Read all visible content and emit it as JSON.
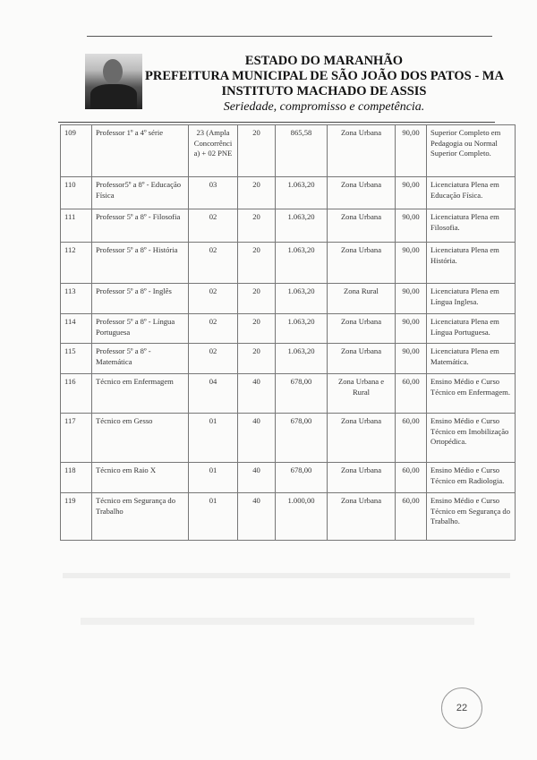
{
  "header": {
    "line1": "ESTADO DO MARANHÃO",
    "line2": "PREFEITURA MUNICIPAL DE SÃO JOÃO DOS PATOS - MA",
    "line3": "INSTITUTO MACHADO DE ASSIS",
    "motto": "Seriedade, compromisso e competência."
  },
  "table": {
    "rows": [
      {
        "code": "109",
        "cargo": "Professor 1º a 4º série",
        "vagas": "23 (Ampla Concorrência) + 02 PNE",
        "carga": "20",
        "salario": "865,58",
        "zona": "Zona Urbana",
        "taxa": "90,00",
        "requisito": "Superior Completo em Pedagogia ou Normal Superior Completo."
      },
      {
        "code": "110",
        "cargo": "Professor5º a 8º - Educação Física",
        "vagas": "03",
        "carga": "20",
        "salario": "1.063,20",
        "zona": "Zona Urbana",
        "taxa": "90,00",
        "requisito": "Licenciatura Plena em Educação Física."
      },
      {
        "code": "111",
        "cargo": "Professor 5º a 8º - Filosofia",
        "vagas": "02",
        "carga": "20",
        "salario": "1.063,20",
        "zona": "Zona Urbana",
        "taxa": "90,00",
        "requisito": "Licenciatura Plena em Filosofia."
      },
      {
        "code": "112",
        "cargo": "Professor 5º a 8º - História",
        "vagas": "02",
        "carga": "20",
        "salario": "1.063,20",
        "zona": "Zona Urbana",
        "taxa": "90,00",
        "requisito": "Licenciatura Plena em História."
      },
      {
        "code": "113",
        "cargo": "Professor 5º a 8º - Inglês",
        "vagas": "02",
        "carga": "20",
        "salario": "1.063,20",
        "zona": "Zona Rural",
        "taxa": "90,00",
        "requisito": "Licenciatura Plena em Língua Inglesa."
      },
      {
        "code": "114",
        "cargo": "Professor 5º a 8º - Língua Portuguesa",
        "vagas": "02",
        "carga": "20",
        "salario": "1.063,20",
        "zona": "Zona Urbana",
        "taxa": "90,00",
        "requisito": "Licenciatura Plena em Língua Portuguesa."
      },
      {
        "code": "115",
        "cargo": "Professor 5º a 8º - Matemática",
        "vagas": "02",
        "carga": "20",
        "salario": "1.063,20",
        "zona": "Zona Urbana",
        "taxa": "90,00",
        "requisito": "Licenciatura Plena em Matemática."
      },
      {
        "code": "116",
        "cargo": "Técnico em Enfermagem",
        "vagas": "04",
        "carga": "40",
        "salario": "678,00",
        "zona": "Zona Urbana e Rural",
        "taxa": "60,00",
        "requisito": "Ensino Médio e Curso Técnico em Enfermagem."
      },
      {
        "code": "117",
        "cargo": "Técnico em Gesso",
        "vagas": "01",
        "carga": "40",
        "salario": "678,00",
        "zona": "Zona Urbana",
        "taxa": "60,00",
        "requisito": "Ensino Médio e Curso Técnico em Imobilização Ortopédica."
      },
      {
        "code": "118",
        "cargo": "Técnico em Raio X",
        "vagas": "01",
        "carga": "40",
        "salario": "678,00",
        "zona": "Zona Urbana",
        "taxa": "60,00",
        "requisito": "Ensino Médio e Curso Técnico em Radiologia."
      },
      {
        "code": "119",
        "cargo": "Técnico em Segurança do Trabalho",
        "vagas": "01",
        "carga": "40",
        "salario": "1.000,00",
        "zona": "Zona Urbana",
        "taxa": "60,00",
        "requisito": "Ensino Médio e Curso Técnico em Segurança do Trabalho."
      }
    ]
  },
  "footer": {
    "page_number": "22"
  }
}
